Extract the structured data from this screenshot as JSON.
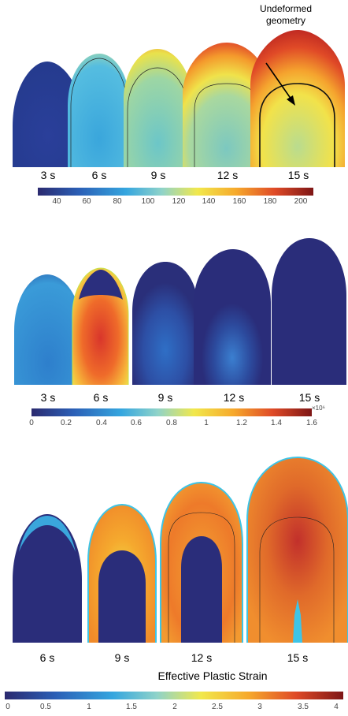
{
  "panels": [
    {
      "id": "temperature",
      "time_labels": [
        "3 s",
        "6 s",
        "9 s",
        "12 s",
        "15 s"
      ],
      "colorbar_ticks": [
        "40",
        "60",
        "80",
        "100",
        "120",
        "140",
        "160",
        "180",
        "200"
      ],
      "annotation": "Undeformed geometry"
    },
    {
      "id": "stress",
      "time_labels": [
        "3 s",
        "6 s",
        "9 s",
        "12 s",
        "15 s"
      ],
      "colorbar_ticks": [
        "0",
        "0.2",
        "0.4",
        "0.6",
        "0.8",
        "1",
        "1.2",
        "1.4",
        "1.6"
      ],
      "exponent": "×10⁶"
    },
    {
      "id": "plastic-strain",
      "time_labels": [
        "6 s",
        "9 s",
        "12 s",
        "15 s"
      ],
      "colorbar_ticks": [
        "0",
        "0.5",
        "1",
        "1.5",
        "2",
        "2.5",
        "3",
        "3.5",
        "4"
      ],
      "colorbar_title": "Effective Plastic Strain"
    }
  ],
  "colors": {
    "jet_dark_blue": "#2a2d7a",
    "jet_blue": "#2a7fd0",
    "jet_cyan": "#3ec4e6",
    "jet_yellow": "#f4e34a",
    "jet_orange": "#f59a2a",
    "jet_red": "#d9362b",
    "jet_dark_red": "#9a1f1b"
  }
}
